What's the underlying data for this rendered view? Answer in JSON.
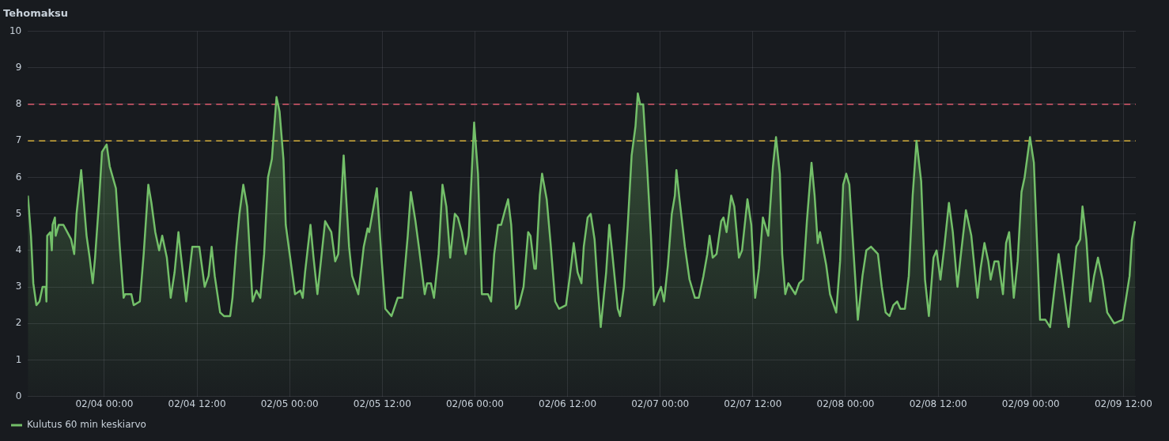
{
  "chart_data": {
    "type": "area",
    "title": "Tehomaksu",
    "xlim": [
      "--02-03T14:06",
      "--02-09T13:36"
    ],
    "xticks": [
      {
        "value": "--02-04T00:00",
        "label": "02/04 00:00"
      },
      {
        "value": "--02-04T12:00",
        "label": "02/04 12:00"
      },
      {
        "value": "--02-05T00:00",
        "label": "02/05 00:00"
      },
      {
        "value": "--02-05T12:00",
        "label": "02/05 12:00"
      },
      {
        "value": "--02-06T00:00",
        "label": "02/06 00:00"
      },
      {
        "value": "--02-06T12:00",
        "label": "02/06 12:00"
      },
      {
        "value": "--02-07T00:00",
        "label": "02/07 00:00"
      },
      {
        "value": "--02-07T12:00",
        "label": "02/07 12:00"
      },
      {
        "value": "--02-08T00:00",
        "label": "02/08 00:00"
      },
      {
        "value": "--02-08T12:00",
        "label": "02/08 12:00"
      },
      {
        "value": "--02-09T00:00",
        "label": "02/09 00:00"
      },
      {
        "value": "--02-09T12:00",
        "label": "02/09 12:00"
      }
    ],
    "ylim": [
      0,
      10
    ],
    "yticks": [
      0,
      1,
      2,
      3,
      4,
      5,
      6,
      7,
      8,
      9,
      10
    ],
    "grid": true,
    "legend": "bottom left",
    "line_style": "solid",
    "ref_lines": [
      {
        "axis": "y",
        "value": 8,
        "color": "#d9586c",
        "line_style": "dashed"
      },
      {
        "axis": "y",
        "value": 7,
        "color": "#d6b03c",
        "line_style": "dashed"
      }
    ],
    "series": [
      {
        "name": "Kulutus 60 min keskiarvo",
        "color": "#73bf69",
        "x": [
          "--02-03T14:06",
          "--02-03T14:30",
          "--02-03T14:48",
          "--02-03T15:12",
          "--02-03T15:36",
          "--02-03T16:00",
          "--02-03T16:24",
          "--02-03T16:30",
          "--02-03T16:36",
          "--02-03T17:00",
          "--02-03T17:12",
          "--02-03T17:18",
          "--02-03T17:36",
          "--02-03T17:42",
          "--02-03T18:06",
          "--02-03T18:42",
          "--02-03T19:12",
          "--02-03T19:42",
          "--02-03T20:06",
          "--02-03T20:24",
          "--02-03T21:00",
          "--02-03T21:42",
          "--02-03T22:06",
          "--02-03T22:30",
          "--02-03T22:48",
          "--02-03T23:18",
          "--02-03T23:42",
          "--02-04T00:18",
          "--02-04T00:42",
          "--02-04T01:30",
          "--02-04T02:00",
          "--02-04T02:30",
          "--02-04T02:42",
          "--02-04T03:30",
          "--02-04T03:48",
          "--02-04T04:36",
          "--02-04T05:06",
          "--02-04T05:42",
          "--02-04T06:06",
          "--02-04T06:36",
          "--02-04T07:06",
          "--02-04T07:30",
          "--02-04T08:06",
          "--02-04T08:36",
          "--02-04T09:06",
          "--02-04T09:36",
          "--02-04T09:54",
          "--02-04T10:36",
          "--02-04T11:24",
          "--02-04T11:48",
          "--02-04T12:18",
          "--02-04T13:00",
          "--02-04T13:30",
          "--02-04T13:54",
          "--02-04T14:18",
          "--02-04T15:00",
          "--02-04T15:30",
          "--02-04T16:18",
          "--02-04T16:36",
          "--02-04T17:06",
          "--02-04T17:30",
          "--02-04T18:00",
          "--02-04T18:30",
          "--02-04T19:12",
          "--02-04T19:42",
          "--02-04T20:12",
          "--02-04T20:42",
          "--02-04T21:12",
          "--02-04T21:42",
          "--02-04T22:18",
          "--02-04T22:42",
          "--02-04T23:12",
          "--02-04T23:30",
          "--02-05T00:12",
          "--02-05T00:42",
          "--02-05T01:24",
          "--02-05T01:42",
          "--02-05T02:00",
          "--02-05T02:42",
          "--02-05T03:06",
          "--02-05T03:36",
          "--02-05T04:00",
          "--02-05T04:36",
          "--02-05T05:24",
          "--02-05T05:54",
          "--02-05T06:18",
          "--02-05T07:00",
          "--02-05T07:42",
          "--02-05T08:06",
          "--02-05T08:54",
          "--02-05T09:36",
          "--02-05T10:06",
          "--02-05T10:18",
          "--02-05T11:18",
          "--02-05T11:54",
          "--02-05T12:24",
          "--02-05T13:12",
          "--02-05T14:00",
          "--02-05T14:36",
          "--02-05T15:18",
          "--02-05T15:42",
          "--02-05T16:18",
          "--02-05T16:48",
          "--02-05T17:30",
          "--02-05T17:48",
          "--02-05T18:18",
          "--02-05T18:42",
          "--02-05T19:18",
          "--02-05T19:48",
          "--02-05T20:18",
          "--02-05T20:48",
          "--02-05T21:24",
          "--02-05T21:48",
          "--02-05T22:18",
          "--02-05T22:48",
          "--02-05T23:12",
          "--02-05T23:54",
          "--02-06T00:24",
          "--02-06T00:54",
          "--02-06T01:42",
          "--02-06T02:06",
          "--02-06T02:30",
          "--02-06T03:00",
          "--02-06T03:24",
          "--02-06T03:54",
          "--02-06T04:18",
          "--02-06T04:42",
          "--02-06T05:18",
          "--02-06T05:42",
          "--02-06T06:18",
          "--02-06T06:54",
          "--02-06T07:12",
          "--02-06T07:42",
          "--02-06T07:54",
          "--02-06T08:24",
          "--02-06T08:42",
          "--02-06T09:18",
          "--02-06T09:48",
          "--02-06T10:24",
          "--02-06T10:54",
          "--02-06T11:48",
          "--02-06T12:18",
          "--02-06T12:48",
          "--02-06T13:18",
          "--02-06T13:48",
          "--02-06T14:06",
          "--02-06T14:36",
          "--02-06T15:00",
          "--02-06T15:30",
          "--02-06T15:54",
          "--02-06T16:18",
          "--02-06T17:00",
          "--02-06T17:24",
          "--02-06T17:48",
          "--02-06T18:30",
          "--02-06T18:48",
          "--02-06T19:18",
          "--02-06T19:48",
          "--02-06T20:18",
          "--02-06T20:48",
          "--02-06T21:06",
          "--02-06T21:24",
          "--02-06T21:48",
          "--02-06T22:18",
          "--02-06T22:48",
          "--02-06T23:12",
          "--02-06T23:42",
          "--02-07T00:06",
          "--02-07T00:30",
          "--02-07T01:00",
          "--02-07T01:30",
          "--02-07T01:54",
          "--02-07T02:06",
          "--02-07T02:30",
          "--02-07T03:12",
          "--02-07T03:48",
          "--02-07T04:30",
          "--02-07T05:00",
          "--02-07T05:36",
          "--02-07T06:06",
          "--02-07T06:24",
          "--02-07T06:48",
          "--02-07T07:18",
          "--02-07T07:54",
          "--02-07T08:12",
          "--02-07T08:36",
          "--02-07T09:12",
          "--02-07T09:36",
          "--02-07T10:12",
          "--02-07T10:36",
          "--02-07T11:18",
          "--02-07T11:48",
          "--02-07T12:18",
          "--02-07T12:48",
          "--02-07T13:18",
          "--02-07T14:00",
          "--02-07T14:36",
          "--02-07T15:00",
          "--02-07T15:30",
          "--02-07T15:48",
          "--02-07T16:12",
          "--02-07T16:36",
          "--02-07T17:30",
          "--02-07T18:00",
          "--02-07T18:30",
          "--02-07T19:00",
          "--02-07T19:36",
          "--02-07T20:00",
          "--02-07T20:24",
          "--02-07T20:42",
          "--02-07T21:30",
          "--02-07T22:00",
          "--02-07T22:48",
          "--02-07T23:18",
          "--02-07T23:42",
          "--02-08T00:06",
          "--02-08T00:30",
          "--02-08T01:00",
          "--02-08T01:36",
          "--02-08T02:12",
          "--02-08T02:42",
          "--02-08T03:18",
          "--02-08T04:12",
          "--02-08T04:42",
          "--02-08T05:12",
          "--02-08T05:42",
          "--02-08T06:12",
          "--02-08T06:42",
          "--02-08T07:06",
          "--02-08T07:42",
          "--02-08T08:12",
          "--02-08T08:42",
          "--02-08T09:12",
          "--02-08T09:48",
          "--02-08T10:18",
          "--02-08T10:48",
          "--02-08T11:24",
          "--02-08T11:48",
          "--02-08T12:18",
          "--02-08T12:48",
          "--02-08T13:24",
          "--02-08T13:54",
          "--02-08T14:30",
          "--02-08T14:54",
          "--02-08T15:36",
          "--02-08T16:18",
          "--02-08T17:06",
          "--02-08T17:30",
          "--02-08T18:00",
          "--02-08T18:30",
          "--02-08T18:48",
          "--02-08T19:18",
          "--02-08T19:48",
          "--02-08T20:24",
          "--02-08T20:48",
          "--02-08T21:12",
          "--02-08T21:48",
          "--02-08T22:18",
          "--02-08T22:48",
          "--02-08T23:12",
          "--02-08T23:54",
          "--02-09T00:24",
          "--02-09T01:12",
          "--02-09T01:54",
          "--02-09T02:30",
          "--02-09T03:06",
          "--02-09T03:36",
          "--02-09T04:00",
          "--02-09T04:54",
          "--02-09T05:54",
          "--02-09T06:24",
          "--02-09T06:42",
          "--02-09T07:12",
          "--02-09T07:42",
          "--02-09T08:12",
          "--02-09T08:42",
          "--02-09T09:18",
          "--02-09T09:54",
          "--02-09T10:48",
          "--02-09T11:54",
          "--02-09T12:48",
          "--02-09T13:06",
          "--02-09T13:30"
        ],
        "values": [
          5.5,
          4.4,
          3.1,
          2.5,
          2.6,
          3.0,
          3.0,
          2.6,
          4.4,
          4.5,
          4.0,
          4.7,
          4.9,
          4.4,
          4.7,
          4.7,
          4.5,
          4.3,
          3.9,
          5.0,
          6.2,
          4.4,
          3.8,
          3.1,
          3.8,
          5.3,
          6.7,
          6.9,
          6.3,
          5.7,
          4.1,
          2.7,
          2.8,
          2.8,
          2.5,
          2.6,
          3.9,
          5.8,
          5.3,
          4.5,
          4.0,
          4.4,
          3.8,
          2.7,
          3.4,
          4.5,
          3.9,
          2.6,
          4.1,
          4.1,
          4.1,
          3.0,
          3.3,
          4.1,
          3.3,
          2.3,
          2.2,
          2.2,
          2.7,
          4.1,
          5.0,
          5.8,
          5.2,
          2.6,
          2.9,
          2.7,
          3.9,
          6.0,
          6.5,
          8.2,
          7.8,
          6.5,
          4.7,
          3.6,
          2.8,
          2.9,
          2.7,
          3.4,
          4.7,
          3.8,
          2.8,
          3.6,
          4.8,
          4.5,
          3.7,
          3.9,
          6.6,
          4.1,
          3.3,
          2.8,
          4.1,
          4.6,
          4.5,
          5.7,
          3.8,
          2.4,
          2.2,
          2.7,
          2.7,
          4.4,
          5.6,
          4.8,
          4.0,
          2.8,
          3.1,
          3.1,
          2.7,
          3.9,
          5.8,
          5.2,
          3.8,
          5.0,
          4.9,
          4.5,
          3.9,
          4.4,
          7.5,
          6.1,
          2.8,
          2.8,
          2.6,
          3.9,
          4.7,
          4.7,
          5.1,
          5.4,
          4.7,
          2.4,
          2.5,
          3.0,
          4.5,
          4.4,
          3.5,
          3.5,
          5.5,
          6.1,
          5.4,
          4.2,
          2.6,
          2.4,
          2.5,
          3.3,
          4.2,
          3.4,
          3.1,
          4.1,
          4.9,
          5.0,
          4.3,
          3.0,
          1.9,
          3.4,
          4.7,
          3.9,
          2.4,
          2.2,
          3.0,
          4.7,
          6.6,
          7.4,
          8.3,
          8.0,
          8.0,
          6.3,
          4.4,
          2.5,
          2.8,
          3.0,
          2.6,
          3.6,
          5.0,
          5.5,
          6.2,
          5.4,
          4.1,
          3.2,
          2.7,
          2.7,
          3.3,
          3.9,
          4.4,
          3.8,
          3.9,
          4.8,
          4.9,
          4.5,
          5.5,
          5.2,
          3.8,
          4.0,
          5.4,
          4.7,
          2.7,
          3.5,
          4.9,
          4.4,
          6.3,
          7.1,
          6.1,
          3.9,
          2.8,
          3.1,
          2.8,
          3.1,
          3.2,
          4.8,
          6.4,
          5.5,
          4.2,
          4.5,
          3.6,
          2.8,
          2.3,
          3.7,
          5.8,
          6.1,
          5.8,
          4.1,
          2.1,
          3.3,
          4.0,
          4.1,
          3.9,
          3.0,
          2.3,
          2.2,
          2.5,
          2.6,
          2.4,
          2.4,
          3.3,
          5.5,
          7.0,
          5.9,
          3.2,
          2.2,
          3.8,
          4.0,
          3.2,
          4.1,
          5.3,
          4.5,
          3.0,
          3.8,
          5.1,
          4.4,
          2.7,
          3.5,
          4.2,
          3.7,
          3.2,
          3.7,
          3.7,
          2.8,
          4.2,
          4.5,
          2.7,
          3.7,
          5.6,
          6.0,
          7.1,
          6.4,
          2.1,
          2.1,
          1.9,
          3.0,
          3.9,
          3.3,
          1.9,
          4.1,
          4.3,
          5.2,
          4.3,
          2.6,
          3.3,
          3.8,
          3.2,
          2.3,
          2.0,
          2.1,
          3.3,
          4.3,
          4.8
        ]
      }
    ]
  }
}
